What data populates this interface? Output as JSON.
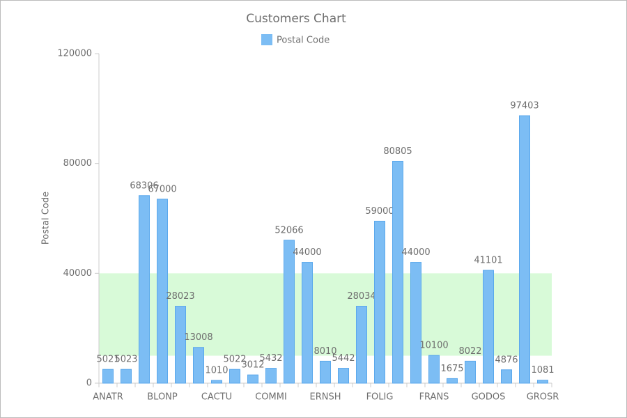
{
  "chart_data": {
    "type": "bar",
    "title": "Customers Chart",
    "y_label": "Postal Code",
    "categories": [
      "ANATR",
      null,
      null,
      "BLONP",
      null,
      null,
      "CACTU",
      null,
      null,
      "COMMI",
      null,
      null,
      "ERNSH",
      null,
      null,
      "FOLIG",
      null,
      null,
      "FRANS",
      null,
      null,
      "GODOS",
      null,
      null,
      "GROSR"
    ],
    "series": [
      {
        "name": "Postal Code",
        "color": "#7cbdf4",
        "values": [
          5021,
          5023,
          68306,
          67000,
          28023,
          13008,
          1010,
          5022,
          3012,
          5432,
          52066,
          44000,
          8010,
          5442,
          28034,
          59000,
          80805,
          44000,
          10100,
          1675,
          8022,
          41101,
          4876,
          97403,
          1081
        ]
      }
    ],
    "ylim": [
      0,
      120000
    ],
    "yticks": [
      0,
      40000,
      80000,
      120000
    ],
    "band": [
      10000,
      40000
    ],
    "band_color": "#d8fad8",
    "data_labels": true
  }
}
